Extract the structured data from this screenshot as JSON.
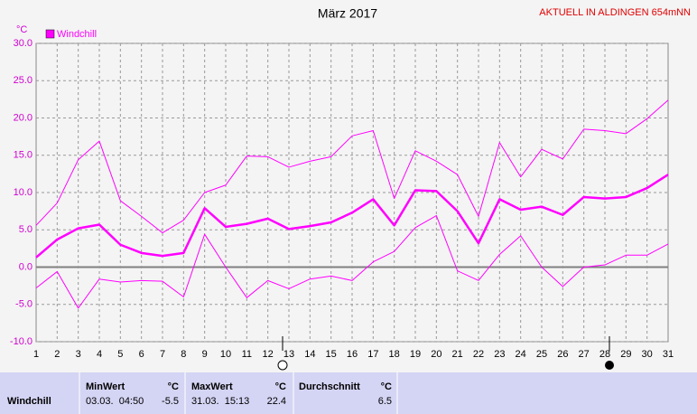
{
  "header": "AKTUELL IN ALDINGEN 654mNN",
  "chart_data": {
    "type": "line",
    "title": "März 2017",
    "ylabel": "°C",
    "x": [
      1,
      2,
      3,
      4,
      5,
      6,
      7,
      8,
      9,
      10,
      11,
      12,
      13,
      14,
      15,
      16,
      17,
      18,
      19,
      20,
      21,
      22,
      23,
      24,
      25,
      26,
      27,
      28,
      29,
      30,
      31
    ],
    "xlim": [
      1,
      31
    ],
    "xticks": [
      1,
      2,
      3,
      4,
      5,
      6,
      7,
      8,
      9,
      10,
      11,
      12,
      13,
      14,
      15,
      16,
      17,
      18,
      19,
      20,
      21,
      22,
      23,
      24,
      25,
      26,
      27,
      28,
      29,
      30,
      31
    ],
    "ylim": [
      -10,
      30
    ],
    "yticks": [
      {
        "value": -10,
        "label": "-10.0"
      },
      {
        "value": -5,
        "label": "-5.0"
      },
      {
        "value": 0,
        "label": "0.0"
      },
      {
        "value": 5,
        "label": "5.0"
      },
      {
        "value": 10,
        "label": "10.0"
      },
      {
        "value": 15,
        "label": "15.0"
      },
      {
        "value": 20,
        "label": "20.0"
      },
      {
        "value": 25,
        "label": "25.0"
      },
      {
        "value": 30,
        "label": "30.0"
      }
    ],
    "grid": true,
    "legend": "top-left",
    "series": [
      {
        "color": "#ff00ff",
        "values": [
          5.6,
          8.6,
          14.4,
          16.9,
          8.9,
          6.8,
          4.6,
          6.3,
          10.0,
          11.0,
          14.9,
          14.8,
          13.4,
          14.2,
          14.8,
          17.6,
          18.3,
          9.2,
          15.6,
          14.2,
          12.4,
          6.8,
          16.7,
          12.1,
          15.8,
          14.5,
          18.5,
          18.3,
          17.9,
          19.9,
          22.4
        ]
      },
      {
        "name": "Windchill",
        "color": "#ff00ff",
        "values": [
          1.3,
          3.7,
          5.2,
          5.7,
          3.0,
          1.9,
          1.5,
          1.9,
          7.9,
          5.4,
          5.8,
          6.5,
          5.1,
          5.5,
          6.0,
          7.3,
          9.1,
          5.6,
          10.3,
          10.2,
          7.5,
          3.2,
          9.1,
          7.7,
          8.1,
          7.0,
          9.4,
          9.2,
          9.4,
          10.6,
          12.4
        ]
      },
      {
        "color": "#ff00ff",
        "values": [
          -2.8,
          -0.6,
          -5.5,
          -1.6,
          -2.0,
          -1.8,
          -1.9,
          -4.0,
          4.4,
          0.0,
          -4.1,
          -1.8,
          -2.9,
          -1.6,
          -1.2,
          -1.8,
          0.7,
          2.1,
          5.3,
          6.9,
          -0.5,
          -1.8,
          1.7,
          4.2,
          0.0,
          -2.6,
          0.0,
          0.3,
          1.6,
          1.6,
          3.1
        ]
      }
    ]
  },
  "table": {
    "columns": [
      "MinWert",
      "°C",
      "MaxWert",
      "°C",
      "Durchschnitt",
      "°C"
    ],
    "rows": [
      {
        "label": "Windchill",
        "min_time": "03.03.  04:50",
        "min": -5.5,
        "max_time": "31.03.  15:13",
        "max": 22.4,
        "avg": 6.5
      }
    ]
  }
}
